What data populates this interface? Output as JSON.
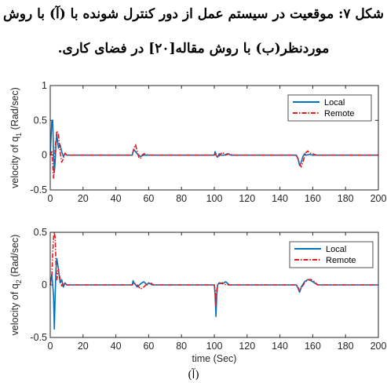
{
  "caption": {
    "line1": "شکل ۷: موقعیت در سیستم عمل از دور کنترل شونده با (آ) با روش",
    "line2": "موردنظر(ب) با روش مقاله[۲۰] در فضای کاری."
  },
  "sublabel": "(آ)",
  "colors": {
    "local": "#0072BD",
    "remote": "#E31A1C",
    "axis": "#262626"
  },
  "chart_data": [
    {
      "type": "line",
      "ylabel_text": "velocity of q",
      "ylabel_sub": "1",
      "ylabel_unit": " (Rad/sec)",
      "xlabel": "",
      "xlim": [
        0,
        200
      ],
      "ylim": [
        -0.5,
        1
      ],
      "xticks": [
        "0",
        "20",
        "40",
        "60",
        "80",
        "100",
        "120",
        "140",
        "160",
        "180",
        "200"
      ],
      "yticks": [
        "-0.5",
        "0",
        "0.5",
        "1"
      ],
      "legend_position": "top-right",
      "series": [
        {
          "name": "Local",
          "style": "solid",
          "x": [
            0,
            1,
            1.5,
            2,
            2.5,
            3,
            3.5,
            4,
            5,
            6,
            7,
            8,
            9,
            10,
            12,
            15,
            20,
            50,
            50.5,
            51,
            52,
            53,
            54,
            55,
            57,
            60,
            100,
            100.5,
            101,
            102,
            103,
            104,
            106,
            108,
            110,
            150,
            151,
            152,
            153,
            154,
            155,
            156,
            158,
            160,
            200
          ],
          "y": [
            0,
            0.5,
            0.5,
            0.05,
            -0.25,
            -0.1,
            0.15,
            0.3,
            0.1,
            0.15,
            0.05,
            -0.02,
            0.02,
            0,
            0,
            0,
            0,
            0,
            0.05,
            0.08,
            0.05,
            0.02,
            0,
            -0.02,
            0,
            0,
            0,
            0.05,
            0,
            -0.03,
            0.02,
            0,
            0,
            0.02,
            0,
            0,
            -0.05,
            -0.15,
            -0.1,
            -0.02,
            0.02,
            0,
            0.01,
            0,
            0
          ]
        },
        {
          "name": "Remote",
          "style": "dashdot",
          "x": [
            0,
            1,
            2,
            2.5,
            3,
            4,
            5,
            6,
            7,
            8,
            9,
            10,
            12,
            15,
            20,
            50,
            51,
            52,
            53,
            54,
            55,
            56,
            57,
            60,
            100,
            101,
            102,
            103,
            104,
            105,
            107,
            109,
            111,
            150,
            151,
            152,
            153,
            154,
            155,
            156,
            157,
            158,
            160,
            162,
            200
          ],
          "y": [
            0,
            0.05,
            -0.33,
            -0.2,
            0.1,
            0.35,
            0.3,
            0.05,
            -0.1,
            -0.05,
            0.03,
            0,
            0,
            0,
            0,
            0,
            0.1,
            0.15,
            0.05,
            -0.03,
            -0.05,
            0,
            0.02,
            0,
            0,
            0.02,
            -0.03,
            -0.01,
            0.02,
            0.04,
            0,
            0.02,
            0,
            0,
            -0.05,
            -0.12,
            -0.17,
            -0.1,
            -0.02,
            0.04,
            0.06,
            0.03,
            0.02,
            0,
            0
          ]
        }
      ]
    },
    {
      "type": "line",
      "ylabel_text": "velocity of q",
      "ylabel_sub": "2",
      "ylabel_unit": " (Rad/sec)",
      "xlabel": "time (Sec)",
      "xlim": [
        0,
        200
      ],
      "ylim": [
        -0.5,
        0.5
      ],
      "xticks": [
        "0",
        "20",
        "40",
        "60",
        "80",
        "100",
        "120",
        "140",
        "160",
        "180",
        "200"
      ],
      "yticks": [
        "-0.5",
        "0",
        "0.5"
      ],
      "legend_position": "top-right",
      "series": [
        {
          "name": "Local",
          "style": "solid",
          "x": [
            0,
            1,
            2,
            2.5,
            3,
            3.5,
            4,
            5,
            6,
            7,
            8,
            9,
            10,
            12,
            15,
            20,
            50,
            50.5,
            51,
            52,
            53,
            55,
            57,
            59,
            60,
            62,
            100,
            100.5,
            101,
            101.5,
            102,
            103,
            105,
            107,
            109,
            150,
            151,
            152,
            153,
            155,
            157,
            159,
            161,
            163,
            200
          ],
          "y": [
            0,
            0.1,
            -0.1,
            -0.42,
            -0.1,
            0.15,
            0.25,
            0.15,
            0.02,
            0.05,
            -0.02,
            0.02,
            0,
            0,
            0,
            0,
            0,
            0.04,
            0.02,
            0,
            -0.02,
            0.01,
            0.03,
            0,
            0.02,
            0,
            0,
            -0.1,
            -0.3,
            -0.1,
            0,
            0.02,
            0.01,
            0.03,
            0,
            0,
            -0.03,
            -0.07,
            -0.02,
            0.03,
            0.05,
            0.04,
            0.02,
            0,
            0
          ]
        },
        {
          "name": "Remote",
          "style": "dashdot",
          "x": [
            0,
            1,
            1.5,
            2,
            2.5,
            3,
            3.5,
            4,
            5,
            6,
            7,
            8,
            9,
            10,
            12,
            15,
            20,
            50,
            51,
            52,
            53,
            55,
            57,
            59,
            61,
            63,
            100,
            100.5,
            101,
            101.5,
            102,
            103,
            105,
            107,
            150,
            151,
            152,
            153,
            155,
            157,
            159,
            161,
            163,
            200
          ],
          "y": [
            0,
            0.1,
            0.3,
            0.45,
            0.5,
            0.45,
            0.2,
            0.05,
            0.15,
            0.05,
            -0.01,
            0.02,
            0,
            0,
            0,
            0,
            0,
            0,
            0.02,
            0.01,
            0,
            -0.04,
            -0.02,
            0.01,
            0.02,
            0,
            0,
            -0.05,
            -0.2,
            -0.05,
            0,
            0.01,
            0.02,
            0,
            0,
            -0.02,
            -0.06,
            -0.03,
            0.02,
            0.05,
            0.05,
            0.03,
            0,
            0
          ]
        }
      ]
    }
  ]
}
